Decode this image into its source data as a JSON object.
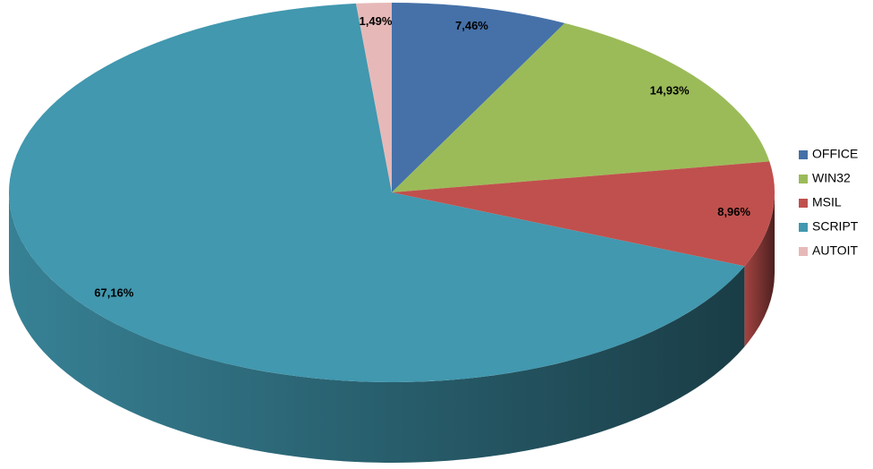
{
  "chart_data": {
    "type": "pie",
    "three_d": true,
    "categories": [
      "OFFICE",
      "WIN32",
      "MSIL",
      "SCRIPT",
      "AUTOIT"
    ],
    "values": [
      7.46,
      14.93,
      8.96,
      67.16,
      1.49
    ],
    "value_labels": [
      "7,46%",
      "14,93%",
      "8,96%",
      "67,16%",
      "1,49%"
    ],
    "colors": [
      "#4571a8",
      "#9bbb59",
      "#c0504d",
      "#4198af",
      "#e6b9b8"
    ],
    "legend": "right"
  }
}
